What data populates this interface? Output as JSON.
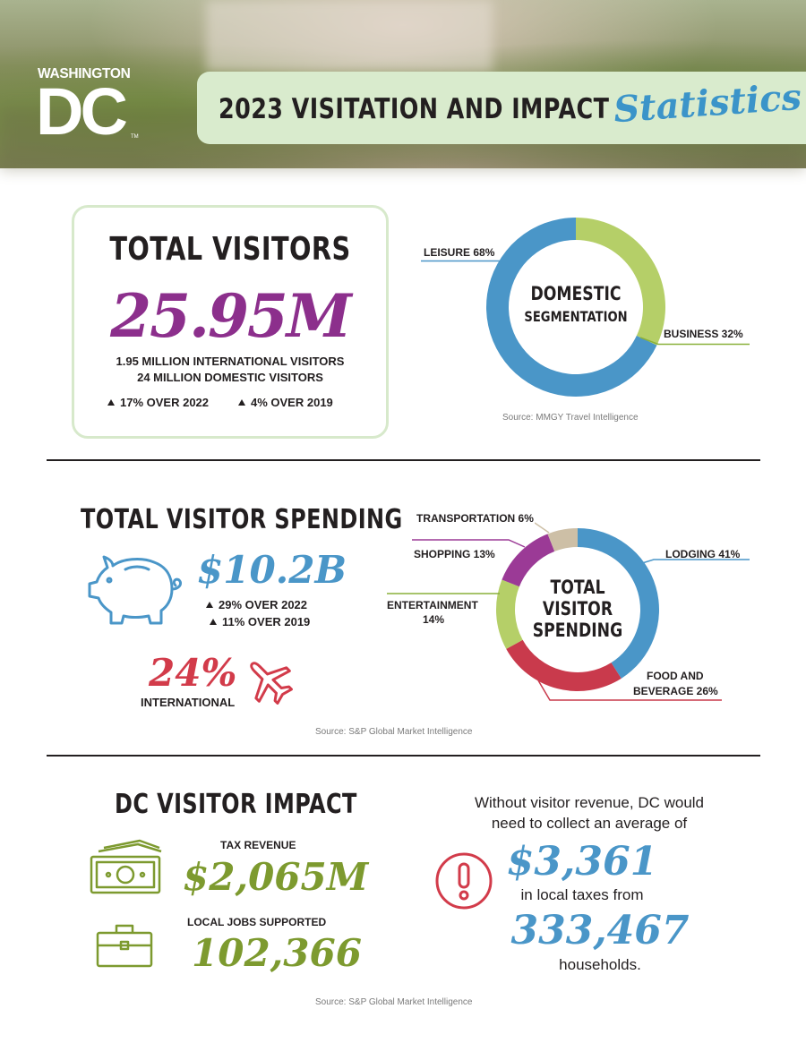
{
  "header": {
    "logo_top": "WASHINGTON",
    "logo_main": "DC",
    "logo_tm": "TM",
    "title": "2023 VISITATION AND IMPACT",
    "title_script": "Statistics"
  },
  "total_visitors": {
    "title": "TOTAL VISITORS",
    "value": "25.95M",
    "line1": "1.95 MILLION INTERNATIONAL VISITORS",
    "line2": "24 MILLION DOMESTIC VISITORS",
    "change1": "17% OVER 2022",
    "change2": "4% OVER 2019"
  },
  "domestic_segmentation": {
    "center_line1": "DOMESTIC",
    "center_line2": "SEGMENTATION",
    "source": "Source: MMGY Travel Intelligence",
    "segments": [
      {
        "label": "LEISURE 68%",
        "value": 68,
        "color": "#4a96c8"
      },
      {
        "label": "BUSINESS 32%",
        "value": 32,
        "color": "#b5cf68"
      }
    ]
  },
  "visitor_spending": {
    "title": "TOTAL VISITOR SPENDING",
    "value": "$10.2B",
    "change1": "29% OVER 2022",
    "change2": "11% OVER 2019",
    "international_pct": "24%",
    "international_label": "INTERNATIONAL",
    "center_line1": "TOTAL",
    "center_line2": "VISITOR",
    "center_line3": "SPENDING",
    "source": "Source: S&P Global Market Intelligence",
    "segments": [
      {
        "label": "LODGING 41%",
        "value": 41,
        "color": "#4a96c8"
      },
      {
        "label_line1": "FOOD AND",
        "label_line2": "BEVERAGE 26%",
        "value": 26,
        "color": "#c93a4c"
      },
      {
        "label_line1": "ENTERTAINMENT",
        "label_line2": "14%",
        "value": 14,
        "color": "#b5cf68"
      },
      {
        "label": "SHOPPING 13%",
        "value": 13,
        "color": "#9b3a96"
      },
      {
        "label": "TRANSPORTATION 6%",
        "value": 6,
        "color": "#cdbfa6"
      }
    ],
    "icon_colors": {
      "piggy": "#4a96c8",
      "plane": "#d23b4a"
    }
  },
  "visitor_impact": {
    "title": "DC VISITOR IMPACT",
    "tax_label": "TAX REVENUE",
    "tax_value": "$2,065M",
    "jobs_label": "LOCAL JOBS SUPPORTED",
    "jobs_value": "102,366",
    "text1": "Without visitor revenue, DC would",
    "text2": "need to collect an average of",
    "avg_value": "$3,361",
    "text3": "in local taxes from",
    "households_value": "333,467",
    "text4": "households.",
    "source": "Source: S&P Global Market Intelligence",
    "icon_colors": {
      "money": "#7d9a2f",
      "alert": "#d23b4a"
    }
  }
}
